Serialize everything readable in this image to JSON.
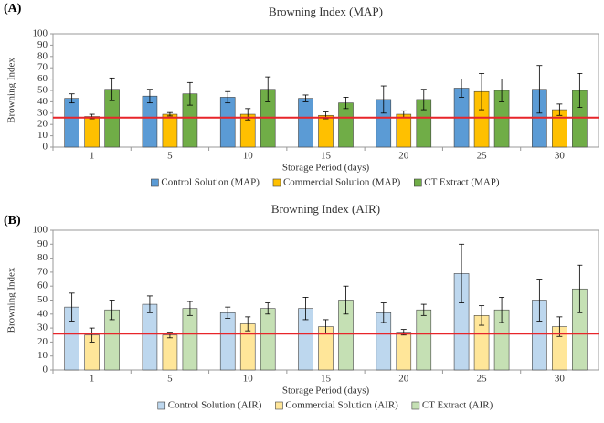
{
  "chart_data": [
    {
      "type": "bar",
      "panel_label": "(A)",
      "title": "Browning Index (MAP)",
      "x_label": "Storage Period (days)",
      "y_label": "Browning Index",
      "categories": [
        "1",
        "5",
        "10",
        "15",
        "20",
        "25",
        "30"
      ],
      "series": [
        {
          "name": "Control Solution (MAP)",
          "color": "#5b9bd5",
          "values": [
            43,
            45,
            44,
            43,
            42,
            52,
            51
          ],
          "errors": [
            4,
            6,
            5,
            3,
            12,
            8,
            21
          ]
        },
        {
          "name": "Commercial Solution (MAP)",
          "color": "#ffc000",
          "values": [
            27,
            29,
            29,
            28,
            29,
            49,
            33
          ],
          "errors": [
            2,
            1.5,
            5,
            3,
            3,
            16,
            5
          ]
        },
        {
          "name": "CT Extract (MAP)",
          "color": "#70ad47",
          "values": [
            51,
            47,
            51,
            39,
            42,
            50,
            50
          ],
          "errors": [
            10,
            10,
            11,
            5,
            9,
            10,
            15
          ]
        }
      ],
      "reference_line": {
        "value": 26,
        "color": "#e8252a"
      },
      "ylim": [
        0,
        100
      ],
      "yticks": [
        0,
        10,
        20,
        30,
        40,
        50,
        60,
        70,
        80,
        90,
        100
      ],
      "grid": false,
      "legend": "bottom"
    },
    {
      "type": "bar",
      "panel_label": "(B)",
      "title": "Browning Index (AIR)",
      "x_label": "Storage Period (days)",
      "y_label": "Browning Index",
      "categories": [
        "1",
        "5",
        "10",
        "15",
        "20",
        "25",
        "30"
      ],
      "series": [
        {
          "name": "Control Solution (AIR)",
          "color": "#bdd7ee",
          "values": [
            45,
            47,
            41,
            44,
            41,
            69,
            50
          ],
          "errors": [
            10,
            6,
            4,
            8,
            7,
            21,
            15
          ]
        },
        {
          "name": "Commercial Solution (AIR)",
          "color": "#ffe699",
          "values": [
            25,
            25,
            33,
            31,
            27,
            39,
            31
          ],
          "errors": [
            5,
            2,
            5,
            5,
            2,
            7,
            7
          ]
        },
        {
          "name": "CT Extract (AIR)",
          "color": "#c5e0b4",
          "values": [
            43,
            44,
            44,
            50,
            43,
            43,
            58
          ],
          "errors": [
            7,
            5,
            4,
            10,
            4,
            9,
            17
          ]
        }
      ],
      "reference_line": {
        "value": 26,
        "color": "#e8252a"
      },
      "ylim": [
        0,
        100
      ],
      "yticks": [
        0,
        10,
        20,
        30,
        40,
        50,
        60,
        70,
        80,
        90,
        100
      ],
      "grid": false,
      "legend": "bottom"
    }
  ]
}
